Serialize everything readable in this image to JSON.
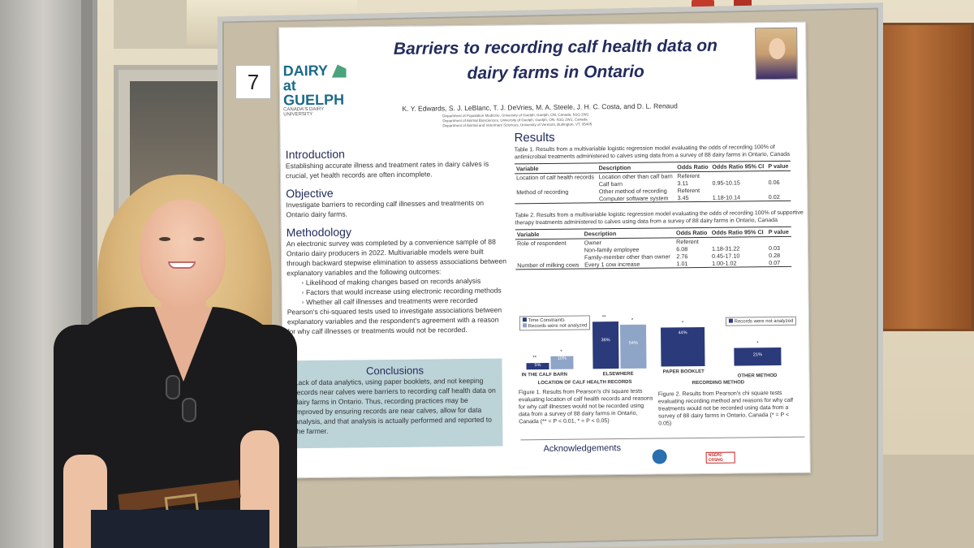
{
  "board": {
    "number": "7"
  },
  "poster": {
    "logo": {
      "line1": "DAIRY",
      "line2": "at GUELPH",
      "line3": "CANADA'S DAIRY UNIVERSITY"
    },
    "title_line1": "Barriers to recording calf health data on",
    "title_line2": "dairy farms in Ontario",
    "authors": "K. Y. Edwards, S. J. LeBlanc, T. J. DeVries, M. A. Steele, J. H. C. Costa, and D. L. Renaud",
    "affiliations": [
      "Department of Population Medicine, University of Guelph, Guelph, ON, Canada, N1G 2W1",
      "Department of Animal Biosciences, University of Guelph, Guelph, ON, N1G 2W1, Canada",
      "Department of Animal and Veterinary Sciences, University of Vermont, Burlington, VT, 05405"
    ],
    "introduction": {
      "heading": "Introduction",
      "text": "Establishing accurate illness and treatment rates in dairy calves is crucial, yet health records are often incomplete."
    },
    "objective": {
      "heading": "Objective",
      "text": "Investigate barriers to recording calf illnesses and treatments on Ontario dairy farms."
    },
    "methodology": {
      "heading": "Methodology",
      "text1": "An electronic survey was completed by a convenience sample of 88 Ontario dairy producers in 2022. Multivariable models were built through backward stepwise elimination to assess associations between explanatory variables and the following outcomes:",
      "bullets": [
        "Likelihood of making changes based on records analysis",
        "Factors that would increase using electronic recording methods",
        "Whether all calf illnesses and treatments were recorded"
      ],
      "text2": "Pearson's chi-squared tests used to investigate associations between explanatory variables and the respondent's agreement with a reason for why calf illnesses or treatments would not be recorded."
    },
    "conclusions": {
      "heading": "Conclusions",
      "text": "Lack of data analytics, using paper booklets, and not keeping records near calves were barriers to recording calf health data on dairy farms in Ontario. Thus, recording practices may be improved by ensuring records are near calves, allow for data analysis, and that analysis is actually performed and reported to the farmer."
    },
    "results": {
      "heading": "Results",
      "table1_caption": "Table 1. Results from a multivariable logistic regression model evaluating the odds of recording 100% of antimicrobial treatments administered to calves using data from a survey of 88 dairy farms in Ontario, Canada",
      "table1_headers": [
        "Variable",
        "Description",
        "Odds Ratio",
        "Odds Ratio 95% CI",
        "P value"
      ],
      "table1_rows": [
        [
          "Location of calf health records",
          "Location other than calf barn",
          "Referent",
          "",
          ""
        ],
        [
          "",
          "Calf barn",
          "3.11",
          "0.95-10.15",
          "0.06"
        ],
        [
          "Method of recording",
          "Other method of recording",
          "Referent",
          "",
          ""
        ],
        [
          "",
          "Computer software system",
          "3.45",
          "1.18-10.14",
          "0.02"
        ]
      ],
      "table2_caption": "Table 2. Results from a multivariable logistic regression model evaluating the odds of recording 100% of supportive therapy treatments administered to calves using data from a survey of 88 dairy farms in Ontario, Canada",
      "table2_headers": [
        "Variable",
        "Description",
        "Odds Ratio",
        "Odds Ratio 95% CI",
        "P value"
      ],
      "table2_rows": [
        [
          "Role of respondent",
          "Owner",
          "Referent",
          "",
          ""
        ],
        [
          "",
          "Non-family employee",
          "6.08",
          "1.18-31.22",
          "0.03"
        ],
        [
          "",
          "Family-member other than owner",
          "2.76",
          "0.45-17.10",
          "0.28"
        ],
        [
          "Number of milking cows",
          "Every 1 cow increase",
          "1.01",
          "1.00-1.02",
          "0.07"
        ]
      ],
      "fig1": {
        "legend": [
          "Time Constraints",
          "Records were not analyzed"
        ],
        "groups": [
          {
            "label": "IN THE CALF BARN",
            "values": [
              "5%",
              "10%"
            ]
          },
          {
            "label": "ELSEWHERE",
            "values": [
              "36%",
              "54%"
            ]
          }
        ],
        "axis_label": "LOCATION OF CALF HEALTH RECORDS",
        "caption": "Figure 1. Results from Pearson's chi square tests evaluating location of calf health records and reasons for why calf illnesses would not be recorded using data from a survey of 88 dairy farms in Ontario, Canada (** = P < 0.01, * = P < 0.05)"
      },
      "fig2": {
        "legend": [
          "Records were not analyzed"
        ],
        "groups": [
          {
            "label": "PAPER BOOKLET",
            "value": "44%"
          },
          {
            "label": "OTHER METHOD",
            "value": "21%"
          }
        ],
        "axis_label": "RECORDING METHOD",
        "caption": "Figure 2. Results from Pearson's chi square tests evaluating recording method and reasons for why calf treatments would not be recorded using data from a survey of 88 dairy farms in Ontario, Canada (* = P < 0.05)"
      }
    },
    "acknowledgements": "Acknowledgements",
    "sponsor": "NSERC CRSNG"
  },
  "colors": {
    "poster_navy": "#232c5c",
    "bar_navy": "#2a3a7a",
    "bar_light": "#8fa5c7",
    "conclusion_bg": "#bcd3d8"
  }
}
